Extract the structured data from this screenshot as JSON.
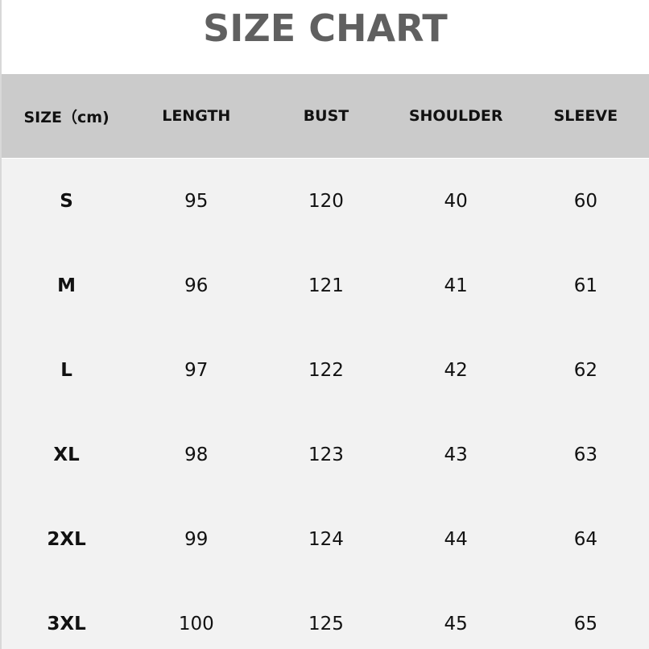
{
  "title": "SIZE CHART",
  "headers": [
    "SIZE（cm)",
    "LENGTH",
    "BUST",
    "SHOULDER",
    "SLEEVE"
  ],
  "rows": [
    [
      "S",
      "95",
      "120",
      "40",
      "60"
    ],
    [
      "M",
      "96",
      "121",
      "41",
      "61"
    ],
    [
      "L",
      "97",
      "122",
      "42",
      "62"
    ],
    [
      "XL",
      "98",
      "123",
      "43",
      "63"
    ],
    [
      "2XL",
      "99",
      "124",
      "44",
      "64"
    ],
    [
      "3XL",
      "100",
      "125",
      "45",
      "65"
    ]
  ],
  "colors": {
    "title": "#606060",
    "header_bg": "#cbcbcb",
    "body_bg": "#f2f2f2"
  }
}
